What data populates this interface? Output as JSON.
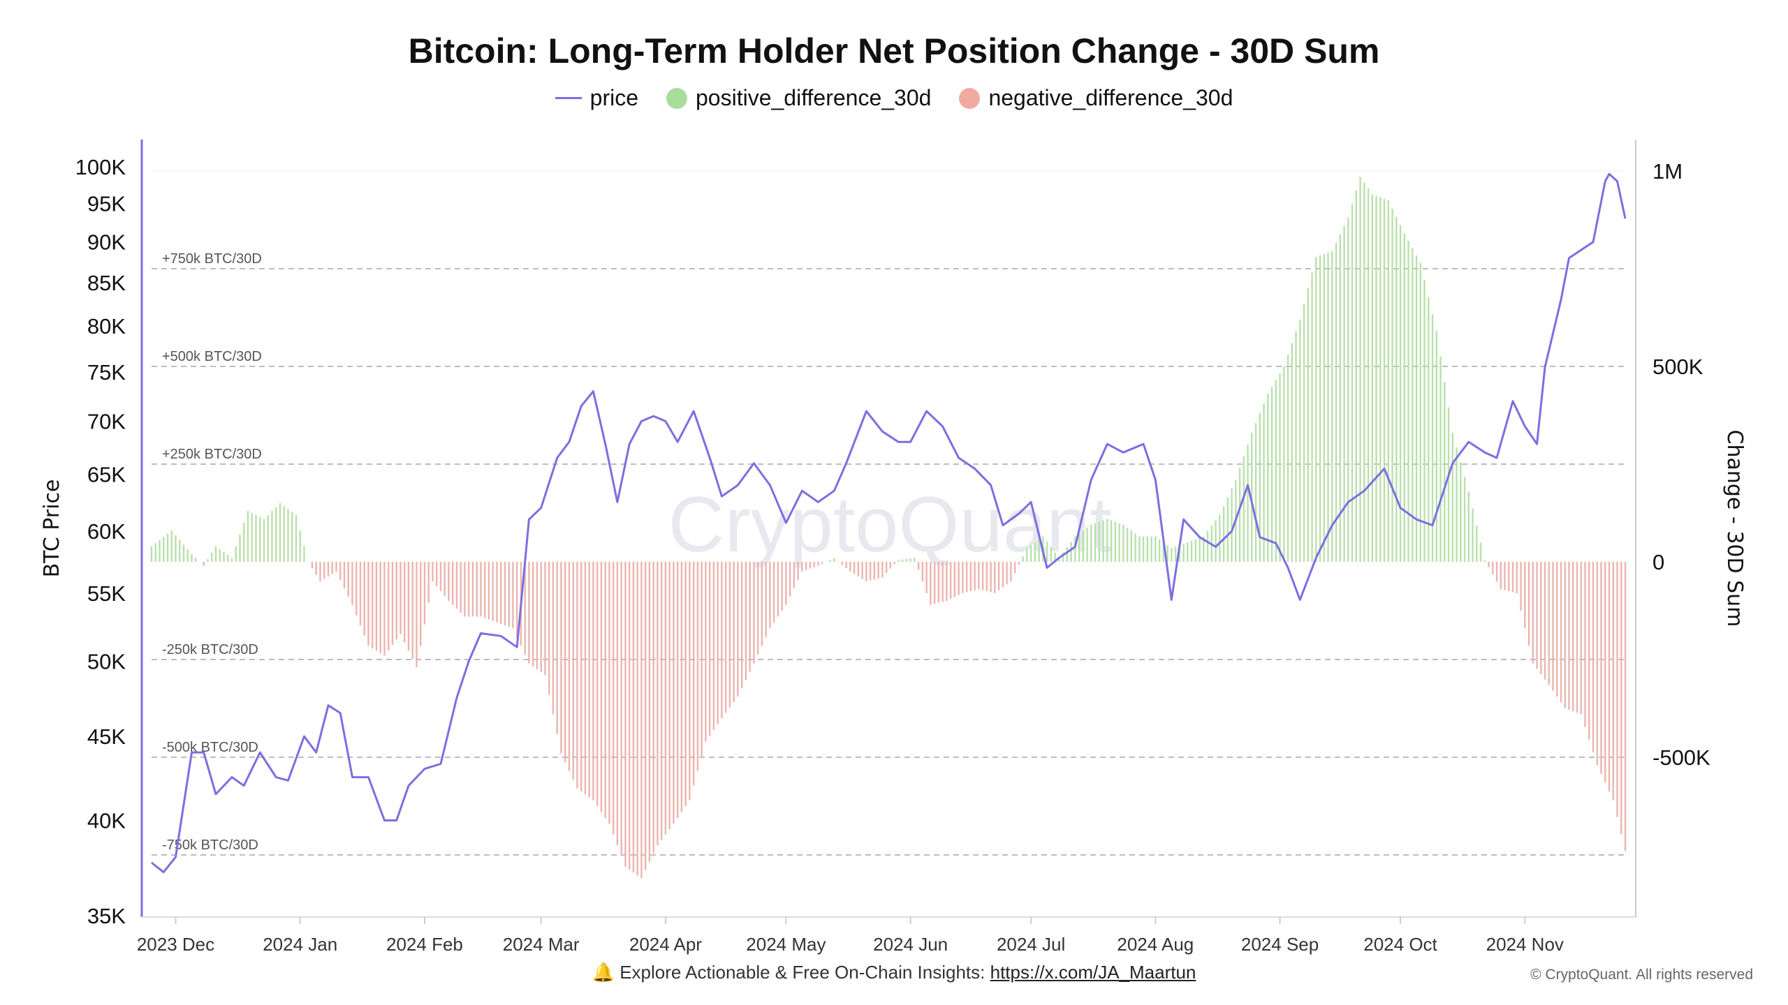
{
  "chart_data": {
    "type": "bar+line",
    "title": "Bitcoin: Long-Term Holder Net Position Change - 30D Sum",
    "legend": {
      "placement": "top-center",
      "entries": [
        "price",
        "positive_difference_30d",
        "negative_difference_30d"
      ]
    },
    "colors": {
      "price": "#7c6ee0",
      "positive": "#b9e0ac",
      "negative": "#ebb5ae",
      "legend_positive": "#a9dd9b",
      "legend_negative": "#f1aaa1"
    },
    "xlim": [
      "2023-11-25",
      "2024-11-26"
    ],
    "x_ticks": [
      {
        "date": "2023-12-01",
        "label": "2023 Dec"
      },
      {
        "date": "2024-01-01",
        "label": "2024 Jan"
      },
      {
        "date": "2024-02-01",
        "label": "2024 Feb"
      },
      {
        "date": "2024-03-01",
        "label": "2024 Mar"
      },
      {
        "date": "2024-04-01",
        "label": "2024 Apr"
      },
      {
        "date": "2024-05-01",
        "label": "2024 May"
      },
      {
        "date": "2024-06-01",
        "label": "2024 Jun"
      },
      {
        "date": "2024-07-01",
        "label": "2024 Jul"
      },
      {
        "date": "2024-08-01",
        "label": "2024 Aug"
      },
      {
        "date": "2024-09-01",
        "label": "2024 Sep"
      },
      {
        "date": "2024-10-01",
        "label": "2024 Oct"
      },
      {
        "date": "2024-11-01",
        "label": "2024 Nov"
      }
    ],
    "y_left": {
      "label": "BTC Price",
      "scale": "log",
      "range": [
        35000,
        100000
      ],
      "ticks": [
        {
          "v": 100000,
          "label": "100K"
        },
        {
          "v": 95000,
          "label": "95K"
        },
        {
          "v": 90000,
          "label": "90K"
        },
        {
          "v": 85000,
          "label": "85K"
        },
        {
          "v": 80000,
          "label": "80K"
        },
        {
          "v": 75000,
          "label": "75K"
        },
        {
          "v": 70000,
          "label": "70K"
        },
        {
          "v": 65000,
          "label": "65K"
        },
        {
          "v": 60000,
          "label": "60K"
        },
        {
          "v": 55000,
          "label": "55K"
        },
        {
          "v": 50000,
          "label": "50K"
        },
        {
          "v": 45000,
          "label": "45K"
        },
        {
          "v": 40000,
          "label": "40K"
        },
        {
          "v": 35000,
          "label": "35K"
        }
      ]
    },
    "y_right": {
      "label": "Change - 30D Sum",
      "scale": "linear",
      "ticks": [
        {
          "v": 1000000,
          "label": "1M"
        },
        {
          "v": 500000,
          "label": "500K"
        },
        {
          "v": 0,
          "label": "0"
        },
        {
          "v": -500000,
          "label": "-500K"
        }
      ]
    },
    "reference_lines": [
      {
        "v": 750000,
        "label": "+750k BTC/30D"
      },
      {
        "v": 500000,
        "label": "+500k BTC/30D"
      },
      {
        "v": 250000,
        "label": "+250k BTC/30D"
      },
      {
        "v": -250000,
        "label": "-250k BTC/30D"
      },
      {
        "v": -500000,
        "label": "-500k BTC/30D"
      },
      {
        "v": -750000,
        "label": "-750k BTC/30D"
      }
    ],
    "price": [
      [
        "2023-11-25",
        37700
      ],
      [
        "2023-11-28",
        37200
      ],
      [
        "2023-12-01",
        38000
      ],
      [
        "2023-12-05",
        44000
      ],
      [
        "2023-12-08",
        44000
      ],
      [
        "2023-12-11",
        41500
      ],
      [
        "2023-12-15",
        42500
      ],
      [
        "2023-12-18",
        42000
      ],
      [
        "2023-12-22",
        44000
      ],
      [
        "2023-12-26",
        42500
      ],
      [
        "2023-12-29",
        42300
      ],
      [
        "2024-01-02",
        45000
      ],
      [
        "2024-01-05",
        44000
      ],
      [
        "2024-01-08",
        47000
      ],
      [
        "2024-01-11",
        46500
      ],
      [
        "2024-01-14",
        42500
      ],
      [
        "2024-01-18",
        42500
      ],
      [
        "2024-01-22",
        40000
      ],
      [
        "2024-01-25",
        40000
      ],
      [
        "2024-01-28",
        42000
      ],
      [
        "2024-02-01",
        43000
      ],
      [
        "2024-02-05",
        43300
      ],
      [
        "2024-02-09",
        47500
      ],
      [
        "2024-02-12",
        50000
      ],
      [
        "2024-02-15",
        52000
      ],
      [
        "2024-02-20",
        51800
      ],
      [
        "2024-02-24",
        51000
      ],
      [
        "2024-02-27",
        61000
      ],
      [
        "2024-03-01",
        62000
      ],
      [
        "2024-03-05",
        66500
      ],
      [
        "2024-03-08",
        68000
      ],
      [
        "2024-03-11",
        71500
      ],
      [
        "2024-03-14",
        73000
      ],
      [
        "2024-03-17",
        67800
      ],
      [
        "2024-03-20",
        62500
      ],
      [
        "2024-03-23",
        67800
      ],
      [
        "2024-03-26",
        70000
      ],
      [
        "2024-03-29",
        70500
      ],
      [
        "2024-04-01",
        70000
      ],
      [
        "2024-04-04",
        68000
      ],
      [
        "2024-04-08",
        71000
      ],
      [
        "2024-04-12",
        66500
      ],
      [
        "2024-04-15",
        63000
      ],
      [
        "2024-04-19",
        64000
      ],
      [
        "2024-04-23",
        66000
      ],
      [
        "2024-04-27",
        64000
      ],
      [
        "2024-05-01",
        60700
      ],
      [
        "2024-05-05",
        63500
      ],
      [
        "2024-05-09",
        62500
      ],
      [
        "2024-05-13",
        63500
      ],
      [
        "2024-05-16",
        66000
      ],
      [
        "2024-05-21",
        71000
      ],
      [
        "2024-05-25",
        69000
      ],
      [
        "2024-05-29",
        68000
      ],
      [
        "2024-06-01",
        68000
      ],
      [
        "2024-06-05",
        71000
      ],
      [
        "2024-06-09",
        69500
      ],
      [
        "2024-06-13",
        66500
      ],
      [
        "2024-06-17",
        65500
      ],
      [
        "2024-06-21",
        64000
      ],
      [
        "2024-06-24",
        60500
      ],
      [
        "2024-06-28",
        61500
      ],
      [
        "2024-07-01",
        62500
      ],
      [
        "2024-07-05",
        57000
      ],
      [
        "2024-07-08",
        57800
      ],
      [
        "2024-07-12",
        58700
      ],
      [
        "2024-07-16",
        64500
      ],
      [
        "2024-07-20",
        67800
      ],
      [
        "2024-07-24",
        67000
      ],
      [
        "2024-07-29",
        67800
      ],
      [
        "2024-08-01",
        64500
      ],
      [
        "2024-08-05",
        54500
      ],
      [
        "2024-08-08",
        61000
      ],
      [
        "2024-08-12",
        59500
      ],
      [
        "2024-08-16",
        58700
      ],
      [
        "2024-08-20",
        60000
      ],
      [
        "2024-08-24",
        64000
      ],
      [
        "2024-08-27",
        59500
      ],
      [
        "2024-08-31",
        59000
      ],
      [
        "2024-09-03",
        57000
      ],
      [
        "2024-09-06",
        54500
      ],
      [
        "2024-09-10",
        57800
      ],
      [
        "2024-09-14",
        60500
      ],
      [
        "2024-09-18",
        62500
      ],
      [
        "2024-09-22",
        63500
      ],
      [
        "2024-09-27",
        65500
      ],
      [
        "2024-10-01",
        62000
      ],
      [
        "2024-10-05",
        61000
      ],
      [
        "2024-10-09",
        60500
      ],
      [
        "2024-10-14",
        66000
      ],
      [
        "2024-10-18",
        68000
      ],
      [
        "2024-10-22",
        67000
      ],
      [
        "2024-10-25",
        66500
      ],
      [
        "2024-10-29",
        72000
      ],
      [
        "2024-11-01",
        69500
      ],
      [
        "2024-11-04",
        67800
      ],
      [
        "2024-11-06",
        75500
      ],
      [
        "2024-11-10",
        83000
      ],
      [
        "2024-11-12",
        88000
      ],
      [
        "2024-11-15",
        89000
      ],
      [
        "2024-11-18",
        90000
      ],
      [
        "2024-11-21",
        98000
      ],
      [
        "2024-11-22",
        99000
      ],
      [
        "2024-11-24",
        98000
      ],
      [
        "2024-11-26",
        93000
      ]
    ],
    "net_position_change_30d": [
      [
        "2023-11-25",
        40000
      ],
      [
        "2023-11-30",
        80000
      ],
      [
        "2023-12-05",
        20000
      ],
      [
        "2023-12-08",
        -10000
      ],
      [
        "2023-12-11",
        40000
      ],
      [
        "2023-12-15",
        10000
      ],
      [
        "2023-12-19",
        130000
      ],
      [
        "2023-12-23",
        110000
      ],
      [
        "2023-12-27",
        150000
      ],
      [
        "2023-12-31",
        120000
      ],
      [
        "2024-01-03",
        0
      ],
      [
        "2024-01-06",
        -50000
      ],
      [
        "2024-01-10",
        -25000
      ],
      [
        "2024-01-14",
        -110000
      ],
      [
        "2024-01-18",
        -215000
      ],
      [
        "2024-01-22",
        -240000
      ],
      [
        "2024-01-26",
        -185000
      ],
      [
        "2024-01-30",
        -270000
      ],
      [
        "2024-02-03",
        -50000
      ],
      [
        "2024-02-07",
        -100000
      ],
      [
        "2024-02-11",
        -140000
      ],
      [
        "2024-02-15",
        -140000
      ],
      [
        "2024-02-19",
        -155000
      ],
      [
        "2024-02-23",
        -170000
      ],
      [
        "2024-02-27",
        -260000
      ],
      [
        "2024-03-02",
        -290000
      ],
      [
        "2024-03-06",
        -490000
      ],
      [
        "2024-03-10",
        -580000
      ],
      [
        "2024-03-14",
        -610000
      ],
      [
        "2024-03-18",
        -670000
      ],
      [
        "2024-03-22",
        -780000
      ],
      [
        "2024-03-26",
        -810000
      ],
      [
        "2024-03-30",
        -725000
      ],
      [
        "2024-04-03",
        -670000
      ],
      [
        "2024-04-07",
        -610000
      ],
      [
        "2024-04-11",
        -460000
      ],
      [
        "2024-04-15",
        -400000
      ],
      [
        "2024-04-19",
        -345000
      ],
      [
        "2024-04-23",
        -260000
      ],
      [
        "2024-04-27",
        -170000
      ],
      [
        "2024-05-01",
        -110000
      ],
      [
        "2024-05-05",
        -25000
      ],
      [
        "2024-05-09",
        -10000
      ],
      [
        "2024-05-13",
        10000
      ],
      [
        "2024-05-17",
        -25000
      ],
      [
        "2024-05-21",
        -50000
      ],
      [
        "2024-05-25",
        -40000
      ],
      [
        "2024-05-29",
        5000
      ],
      [
        "2024-06-02",
        10000
      ],
      [
        "2024-06-06",
        -110000
      ],
      [
        "2024-06-10",
        -100000
      ],
      [
        "2024-06-14",
        -80000
      ],
      [
        "2024-06-18",
        -70000
      ],
      [
        "2024-06-22",
        -80000
      ],
      [
        "2024-06-26",
        -50000
      ],
      [
        "2024-06-30",
        35000
      ],
      [
        "2024-07-04",
        65000
      ],
      [
        "2024-07-08",
        10000
      ],
      [
        "2024-07-12",
        65000
      ],
      [
        "2024-07-16",
        95000
      ],
      [
        "2024-07-20",
        110000
      ],
      [
        "2024-07-24",
        95000
      ],
      [
        "2024-07-28",
        65000
      ],
      [
        "2024-08-01",
        65000
      ],
      [
        "2024-08-05",
        35000
      ],
      [
        "2024-08-09",
        50000
      ],
      [
        "2024-08-13",
        65000
      ],
      [
        "2024-08-17",
        120000
      ],
      [
        "2024-08-21",
        210000
      ],
      [
        "2024-08-25",
        330000
      ],
      [
        "2024-08-29",
        430000
      ],
      [
        "2024-09-02",
        500000
      ],
      [
        "2024-09-06",
        620000
      ],
      [
        "2024-09-10",
        780000
      ],
      [
        "2024-09-14",
        795000
      ],
      [
        "2024-09-18",
        880000
      ],
      [
        "2024-09-21",
        985000
      ],
      [
        "2024-09-24",
        940000
      ],
      [
        "2024-09-28",
        925000
      ],
      [
        "2024-10-02",
        840000
      ],
      [
        "2024-10-06",
        765000
      ],
      [
        "2024-10-10",
        590000
      ],
      [
        "2024-10-14",
        330000
      ],
      [
        "2024-10-18",
        180000
      ],
      [
        "2024-10-22",
        5000
      ],
      [
        "2024-10-26",
        -70000
      ],
      [
        "2024-10-30",
        -80000
      ],
      [
        "2024-11-03",
        -260000
      ],
      [
        "2024-11-07",
        -315000
      ],
      [
        "2024-11-11",
        -375000
      ],
      [
        "2024-11-15",
        -390000
      ],
      [
        "2024-11-19",
        -520000
      ],
      [
        "2024-11-23",
        -610000
      ],
      [
        "2024-11-26",
        -740000
      ]
    ],
    "watermark": "CryptoQuant"
  },
  "footer": {
    "icon": "bell-icon",
    "text": "Explore Actionable & Free On-Chain Insights:",
    "link": "https://x.com/JA_Maartun",
    "copyright": "© CryptoQuant. All rights reserved"
  }
}
